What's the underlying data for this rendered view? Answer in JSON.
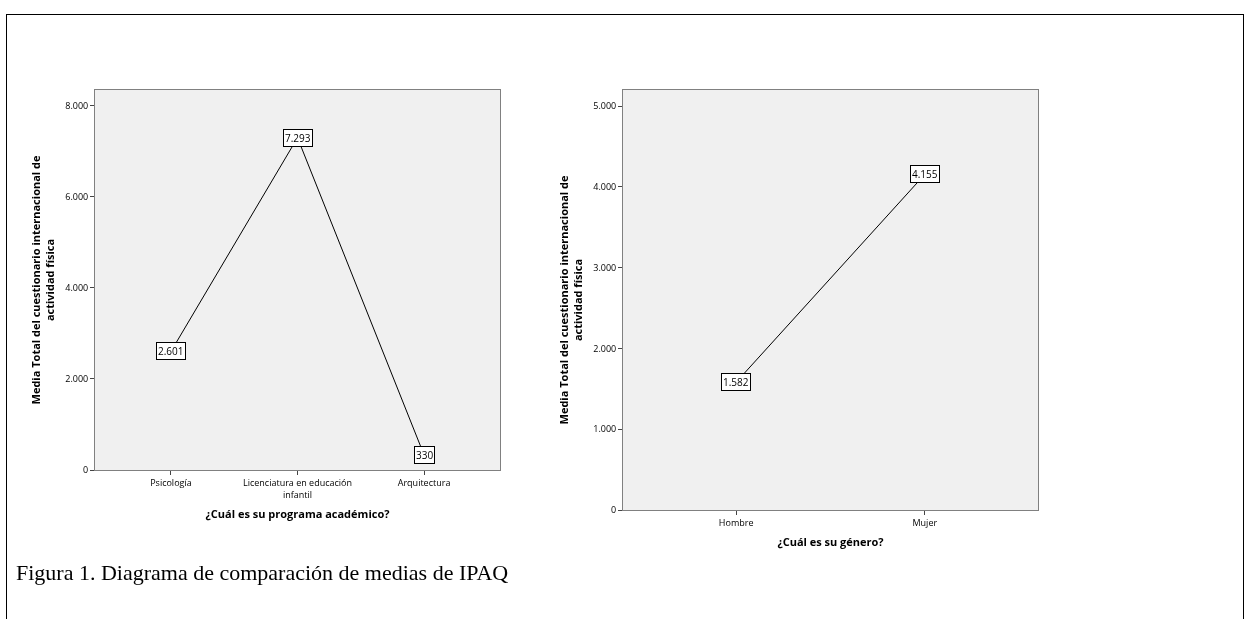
{
  "chart_data": [
    {
      "type": "line",
      "xlabel": "¿Cuál es su programa académico?",
      "ylabel": "Media Total del cuestionario internacional de actividad física",
      "categories": [
        "Psicología",
        "Licenciatura en educación infantil",
        "Arquitectura"
      ],
      "series": [
        {
          "color": "#000000",
          "values": [
            2601,
            7293,
            330
          ],
          "value_labels": [
            "2.601",
            "7.293",
            "330"
          ]
        }
      ],
      "marker": "square",
      "ylim": [
        0,
        8340
      ],
      "yticks": [
        {
          "value": 0,
          "label": "0"
        },
        {
          "value": 2000,
          "label": "2.000"
        },
        {
          "value": 4000,
          "label": "4.000"
        },
        {
          "value": 6000,
          "label": "6.000"
        },
        {
          "value": 8000,
          "label": "8.000"
        }
      ],
      "grid": false,
      "annotations": [
        "Figura 1. Diagrama de comparación de medias de IPAQ"
      ]
    },
    {
      "type": "line",
      "xlabel": "¿Cuál es su género?",
      "ylabel": "Media Total del cuestionario internacional de actividad física",
      "categories": [
        "Hombre",
        "Mujer"
      ],
      "series": [
        {
          "color": "#000000",
          "values": [
            1582,
            4155
          ],
          "value_labels": [
            "1.582",
            "4.155"
          ]
        }
      ],
      "marker": "square",
      "ylim": [
        0,
        5200
      ],
      "yticks": [
        {
          "value": 0,
          "label": "0"
        },
        {
          "value": 1000,
          "label": "1.000"
        },
        {
          "value": 2000,
          "label": "2.000"
        },
        {
          "value": 3000,
          "label": "3.000"
        },
        {
          "value": 4000,
          "label": "4.000"
        },
        {
          "value": 5000,
          "label": "5.000"
        }
      ],
      "grid": false
    }
  ]
}
